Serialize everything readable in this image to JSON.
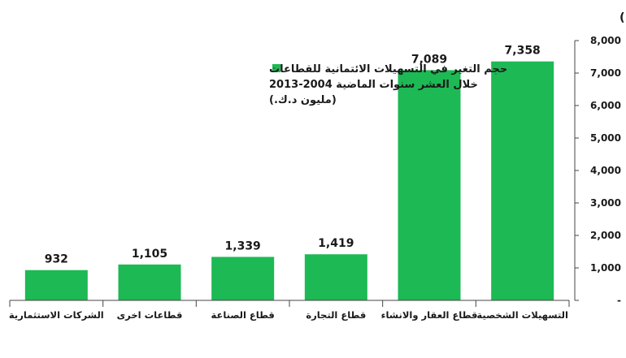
{
  "chart_data": {
    "type": "bar",
    "title": "حجم التغير في التسهيلات الائتمانية للقطاعات خلال العشر سنوات الماضية 2004-2013 (مليون د.ك.)",
    "categories": [
      "الشركات الاستثمارية",
      "قطاعات اخرى",
      "قطاع الصناعة",
      "قطاع التجارة",
      "قطاع العقار والانشاء",
      "التسهيلات الشخصية"
    ],
    "series": [
      {
        "name": "حجم التغير في التسهيلات الائتمانية للقطاعات خلال العشر سنوات الماضية 2004-2013 (مليون د.ك.)",
        "values": [
          932,
          1105,
          1339,
          1419,
          7089,
          7358
        ],
        "data_labels": [
          "932",
          "1,105",
          "1,339",
          "1,419",
          "7,089",
          "7,358"
        ]
      }
    ],
    "legend": {
      "position": "top-left",
      "lines": [
        "حجم التغير في التسهيلات الائتمانية للقطاعات",
        "خلال العشر سنوات الماضية 2004-2013",
        "(مليون د.ك.)"
      ]
    },
    "ylim": [
      0,
      8000
    ],
    "yticks": [
      0,
      1000,
      2000,
      3000,
      4000,
      5000,
      6000,
      7000,
      8000
    ],
    "ytick_labels": [
      "-",
      "1,000",
      "2,000",
      "3,000",
      "4,000",
      "5,000",
      "6,000",
      "7,000",
      "8,000"
    ],
    "y_axis_side": "right",
    "grid": false,
    "colors": {
      "bar": "#1db954",
      "text": "#1a1a1a",
      "axis": "#444444"
    }
  }
}
